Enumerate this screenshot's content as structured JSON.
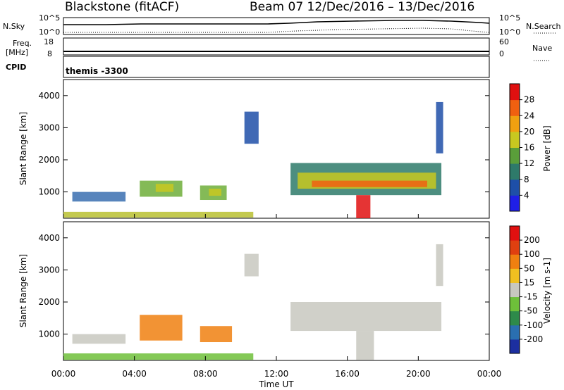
{
  "header": {
    "radar_title": "Blackstone (fitACF)",
    "beam_date": "Beam 07  12/Dec/2016 – 13/Dec/2016",
    "nsky_label": "N.Sky",
    "nsky_top": "10^5",
    "nsky_bottom": "10^0",
    "nsearch_label": "N.Search",
    "nsearch_top": "10^5",
    "nsearch_bottom": "10^0",
    "freq_label_1": "Freq.",
    "freq_label_2": "[MHz]",
    "freq_top": "18",
    "freq_bottom": "8",
    "nave_label": "Nave",
    "nave_top": "60",
    "nave_bottom": "0",
    "cpid_label": "CPID",
    "cpid_value": "themis -3300"
  },
  "chart_data": [
    {
      "type": "heatmap",
      "name": "power-panel",
      "ylabel": "Slant Range [km]",
      "yticks": [
        "1000",
        "2000",
        "3000",
        "4000"
      ],
      "ylim": [
        180,
        4500
      ],
      "xlim": [
        0,
        24
      ],
      "colorbar_label": "Power [dB]",
      "colorbar_ticks": [
        "4",
        "8",
        "12",
        "16",
        "20",
        "24",
        "28"
      ],
      "colorbar_colors": [
        "#1f1fe6",
        "#1e4fa8",
        "#2e7a6a",
        "#5a9e3a",
        "#c8c820",
        "#f0a010",
        "#f06010",
        "#e01010"
      ],
      "bands": [
        {
          "t0": 0.0,
          "t1": 10.7,
          "r0": 200,
          "r1": 380,
          "color": "#b8c030"
        },
        {
          "t0": 0.5,
          "t1": 3.5,
          "r0": 700,
          "r1": 1000,
          "color": "#3a6fb0"
        },
        {
          "t0": 4.3,
          "t1": 6.7,
          "r0": 850,
          "r1": 1350,
          "color": "#6fae3a"
        },
        {
          "t0": 5.2,
          "t1": 6.2,
          "r0": 1000,
          "r1": 1250,
          "color": "#c8c820"
        },
        {
          "t0": 7.7,
          "t1": 9.2,
          "r0": 750,
          "r1": 1200,
          "color": "#6fae3a"
        },
        {
          "t0": 8.2,
          "t1": 8.9,
          "r0": 880,
          "r1": 1100,
          "color": "#c8c820"
        },
        {
          "t0": 12.8,
          "t1": 21.3,
          "r0": 900,
          "r1": 1900,
          "color": "#2e7a6a"
        },
        {
          "t0": 13.2,
          "t1": 21.0,
          "r0": 1100,
          "r1": 1600,
          "color": "#c8c820"
        },
        {
          "t0": 14.0,
          "t1": 20.5,
          "r0": 1150,
          "r1": 1350,
          "color": "#f06010"
        },
        {
          "t0": 16.5,
          "t1": 17.3,
          "r0": 180,
          "r1": 900,
          "color": "#e01010"
        },
        {
          "t0": 10.2,
          "t1": 11.0,
          "r0": 2500,
          "r1": 3500,
          "color": "#1e4fa8"
        },
        {
          "t0": 21.0,
          "t1": 21.4,
          "r0": 2200,
          "r1": 3800,
          "color": "#1e4fa8"
        }
      ]
    },
    {
      "type": "heatmap",
      "name": "velocity-panel",
      "ylabel": "Slant Range [km]",
      "yticks": [
        "1000",
        "2000",
        "3000",
        "4000"
      ],
      "ylim": [
        180,
        4500
      ],
      "xlim": [
        0,
        24
      ],
      "colorbar_label": "Velocity [m s-1]",
      "colorbar_ticks": [
        "200",
        "100",
        "50",
        "15",
        "-15",
        "-50",
        "-100",
        "-200"
      ],
      "colorbar_colors": [
        "#1c2fa0",
        "#2a6fb0",
        "#2e8a4a",
        "#6ec03a",
        "#c8c8c0",
        "#f0c020",
        "#f08010",
        "#e04010",
        "#e01010"
      ],
      "bands": [
        {
          "t0": 0.0,
          "t1": 10.7,
          "r0": 200,
          "r1": 400,
          "color": "#6ec03a"
        },
        {
          "t0": 0.5,
          "t1": 3.5,
          "r0": 700,
          "r1": 1000,
          "color": "#c8c8c0"
        },
        {
          "t0": 4.3,
          "t1": 6.7,
          "r0": 800,
          "r1": 1600,
          "color": "#f08010"
        },
        {
          "t0": 7.7,
          "t1": 9.5,
          "r0": 750,
          "r1": 1250,
          "color": "#f08010"
        },
        {
          "t0": 12.8,
          "t1": 21.3,
          "r0": 1100,
          "r1": 2000,
          "color": "#c8c8c0"
        },
        {
          "t0": 16.5,
          "t1": 17.5,
          "r0": 200,
          "r1": 1100,
          "color": "#c8c8c0"
        },
        {
          "t0": 10.2,
          "t1": 11.0,
          "r0": 2800,
          "r1": 3500,
          "color": "#c8c8c0"
        },
        {
          "t0": 21.0,
          "t1": 21.4,
          "r0": 2500,
          "r1": 3800,
          "color": "#c8c8c0"
        }
      ]
    }
  ],
  "xaxis": {
    "ticks": [
      "00:00",
      "04:00",
      "08:00",
      "12:00",
      "16:00",
      "20:00",
      "00:00"
    ],
    "label": "Time UT"
  }
}
